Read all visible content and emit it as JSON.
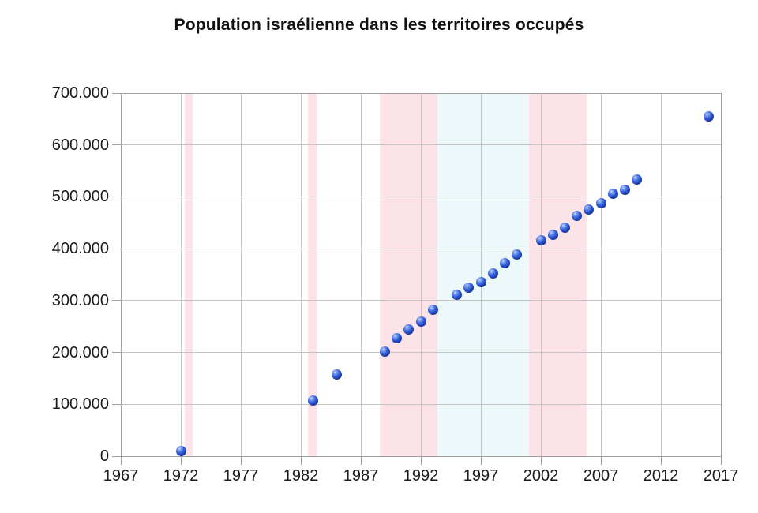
{
  "chart_data": {
    "type": "scatter",
    "title": "Population israélienne dans les territoires occupés",
    "xlabel": "",
    "ylabel": "",
    "xlim": [
      1967,
      2017
    ],
    "ylim": [
      0,
      700000
    ],
    "grid": true,
    "legend": false,
    "x_ticks": [
      1967,
      1972,
      1977,
      1982,
      1987,
      1992,
      1997,
      2002,
      2007,
      2012,
      2017
    ],
    "x_tick_labels": [
      "1967",
      "1972",
      "1977",
      "1982",
      "1987",
      "1992",
      "1997",
      "2002",
      "2007",
      "2012",
      "2017"
    ],
    "y_ticks": [
      0,
      100000,
      200000,
      300000,
      400000,
      500000,
      600000,
      700000
    ],
    "y_tick_labels": [
      "0",
      "100.000",
      "200.000",
      "300.000",
      "400.000",
      "500.000",
      "600.000",
      "700.000"
    ],
    "series": [
      {
        "name": "Population israélienne",
        "points": [
          {
            "x": 1972,
            "y": 10500
          },
          {
            "x": 1983,
            "y": 107000
          },
          {
            "x": 1985,
            "y": 158000
          },
          {
            "x": 1989,
            "y": 201000
          },
          {
            "x": 1990,
            "y": 227000
          },
          {
            "x": 1991,
            "y": 244000
          },
          {
            "x": 1992,
            "y": 260000
          },
          {
            "x": 1993,
            "y": 282000
          },
          {
            "x": 1995,
            "y": 311000
          },
          {
            "x": 1996,
            "y": 325000
          },
          {
            "x": 1997,
            "y": 336000
          },
          {
            "x": 1998,
            "y": 352000
          },
          {
            "x": 1999,
            "y": 372000
          },
          {
            "x": 2000,
            "y": 389000
          },
          {
            "x": 2002,
            "y": 416000
          },
          {
            "x": 2003,
            "y": 427000
          },
          {
            "x": 2004,
            "y": 441000
          },
          {
            "x": 2005,
            "y": 463000
          },
          {
            "x": 2006,
            "y": 476000
          },
          {
            "x": 2007,
            "y": 487000
          },
          {
            "x": 2008,
            "y": 506000
          },
          {
            "x": 2009,
            "y": 514000
          },
          {
            "x": 2010,
            "y": 533000
          },
          {
            "x": 2016,
            "y": 655000
          }
        ]
      }
    ],
    "bands": [
      {
        "from": 1972.3,
        "to": 1973.0,
        "color": "#fbe3e8"
      },
      {
        "from": 1982.6,
        "to": 1983.3,
        "color": "#fbe3e8"
      },
      {
        "from": 1988.6,
        "to": 1993.4,
        "color": "#fbe3e8"
      },
      {
        "from": 1993.4,
        "to": 2001.0,
        "color": "#ecf8f9"
      },
      {
        "from": 2001.0,
        "to": 2005.8,
        "color": "#fbe3e8"
      }
    ],
    "colors": {
      "point": "#2f5ad6",
      "band_pink": "#fbe3e8",
      "band_blue": "#ecf8f9",
      "grid_inner": "#c4c4c4",
      "grid_edge": "#9f9f9f",
      "text": "#1a1a1a"
    }
  }
}
